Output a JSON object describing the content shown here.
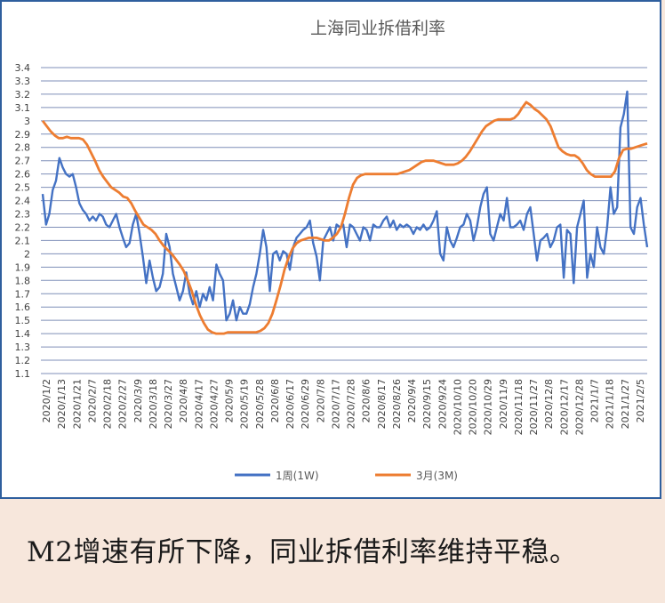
{
  "chart_data": {
    "type": "line",
    "title": "上海同业拆借利率",
    "ylim": [
      1.1,
      3.4
    ],
    "y_ticks": [
      "1.1",
      "1.2",
      "1.3",
      "1.4",
      "1.5",
      "1.6",
      "1.7",
      "1.8",
      "1.9",
      "2",
      "2.1",
      "2.2",
      "2.3",
      "2.4",
      "2.5",
      "2.6",
      "2.7",
      "2.8",
      "2.9",
      "3",
      "3.1",
      "3.2",
      "3.3",
      "3.4"
    ],
    "x_tick_labels": [
      "2020/1/2",
      "2020/1/13",
      "2020/1/21",
      "2020/2/7",
      "2020/2/18",
      "2020/2/27",
      "2020/3/9",
      "2020/3/18",
      "2020/3/27",
      "2020/4/8",
      "2020/4/17",
      "2020/4/27",
      "2020/5/9",
      "2020/5/19",
      "2020/5/28",
      "2020/6/8",
      "2020/6/17",
      "2020/6/29",
      "2020/7/8",
      "2020/7/17",
      "2020/7/28",
      "2020/8/6",
      "2020/8/17",
      "2020/8/26",
      "2020/9/4",
      "2020/9/15",
      "2020/9/24",
      "2020/10/10",
      "2020/10/20",
      "2020/10/29",
      "2020/11/9",
      "2020/11/18",
      "2020/11/27",
      "2020/12/8",
      "2020/12/17",
      "2020/12/28",
      "2021/1/7",
      "2021/1/18",
      "2021/1/27",
      "2021/2/5"
    ],
    "grid": true,
    "legend_position": "bottom",
    "series": [
      {
        "name": "1周(1W)",
        "color": "#4472c4",
        "values": [
          2.45,
          2.22,
          2.3,
          2.48,
          2.55,
          2.72,
          2.65,
          2.6,
          2.58,
          2.6,
          2.5,
          2.38,
          2.33,
          2.3,
          2.25,
          2.28,
          2.25,
          2.3,
          2.28,
          2.22,
          2.2,
          2.25,
          2.3,
          2.2,
          2.12,
          2.05,
          2.08,
          2.22,
          2.3,
          2.15,
          1.98,
          1.78,
          1.95,
          1.82,
          1.72,
          1.75,
          1.85,
          2.15,
          2.05,
          1.85,
          1.75,
          1.65,
          1.72,
          1.86,
          1.7,
          1.62,
          1.72,
          1.6,
          1.7,
          1.65,
          1.75,
          1.65,
          1.92,
          1.85,
          1.8,
          1.5,
          1.55,
          1.65,
          1.5,
          1.6,
          1.55,
          1.55,
          1.62,
          1.75,
          1.85,
          2.0,
          2.18,
          2.05,
          1.72,
          2.0,
          2.02,
          1.95,
          2.02,
          2.0,
          1.88,
          2.05,
          2.12,
          2.15,
          2.18,
          2.2,
          2.25,
          2.08,
          1.98,
          1.8,
          2.1,
          2.15,
          2.2,
          2.1,
          2.22,
          2.2,
          2.22,
          2.05,
          2.22,
          2.2,
          2.15,
          2.1,
          2.2,
          2.18,
          2.1,
          2.22,
          2.2,
          2.2,
          2.25,
          2.28,
          2.2,
          2.25,
          2.18,
          2.22,
          2.2,
          2.22,
          2.2,
          2.15,
          2.2,
          2.18,
          2.22,
          2.18,
          2.2,
          2.25,
          2.32,
          2.0,
          1.95,
          2.2,
          2.1,
          2.05,
          2.12,
          2.2,
          2.22,
          2.3,
          2.25,
          2.1,
          2.2,
          2.35,
          2.45,
          2.5,
          2.15,
          2.1,
          2.2,
          2.3,
          2.25,
          2.42,
          2.2,
          2.2,
          2.22,
          2.25,
          2.18,
          2.3,
          2.35,
          2.15,
          1.95,
          2.1,
          2.12,
          2.15,
          2.05,
          2.1,
          2.2,
          2.22,
          1.82,
          2.18,
          2.15,
          1.78,
          2.2,
          2.3,
          2.4,
          1.82,
          2.0,
          1.9,
          2.2,
          2.05,
          2.0,
          2.2,
          2.5,
          2.3,
          2.35,
          2.95,
          3.05,
          3.22,
          2.2,
          2.15,
          2.35,
          2.42,
          2.22,
          2.05
        ]
      },
      {
        "name": "3月(3M)",
        "color": "#ed7d31",
        "values": [
          3.0,
          2.96,
          2.92,
          2.89,
          2.87,
          2.87,
          2.88,
          2.87,
          2.87,
          2.87,
          2.86,
          2.82,
          2.76,
          2.7,
          2.63,
          2.58,
          2.54,
          2.5,
          2.48,
          2.46,
          2.43,
          2.42,
          2.38,
          2.32,
          2.27,
          2.22,
          2.2,
          2.18,
          2.15,
          2.1,
          2.06,
          2.03,
          2.0,
          1.96,
          1.92,
          1.87,
          1.8,
          1.72,
          1.62,
          1.54,
          1.48,
          1.43,
          1.41,
          1.4,
          1.4,
          1.4,
          1.41,
          1.41,
          1.41,
          1.41,
          1.41,
          1.41,
          1.41,
          1.41,
          1.42,
          1.44,
          1.48,
          1.55,
          1.65,
          1.76,
          1.88,
          1.97,
          2.04,
          2.08,
          2.1,
          2.11,
          2.12,
          2.12,
          2.12,
          2.11,
          2.1,
          2.1,
          2.12,
          2.15,
          2.2,
          2.3,
          2.42,
          2.52,
          2.57,
          2.59,
          2.6,
          2.6,
          2.6,
          2.6,
          2.6,
          2.6,
          2.6,
          2.6,
          2.6,
          2.61,
          2.62,
          2.63,
          2.65,
          2.67,
          2.69,
          2.7,
          2.7,
          2.7,
          2.69,
          2.68,
          2.67,
          2.67,
          2.67,
          2.68,
          2.7,
          2.73,
          2.77,
          2.82,
          2.87,
          2.92,
          2.96,
          2.98,
          3.0,
          3.01,
          3.01,
          3.01,
          3.01,
          3.02,
          3.05,
          3.1,
          3.14,
          3.12,
          3.09,
          3.07,
          3.04,
          3.01,
          2.96,
          2.88,
          2.8,
          2.77,
          2.75,
          2.74,
          2.74,
          2.72,
          2.68,
          2.63,
          2.6,
          2.58,
          2.58,
          2.58,
          2.58,
          2.58,
          2.62,
          2.72,
          2.78,
          2.79,
          2.79,
          2.8,
          2.81,
          2.82,
          2.83
        ]
      }
    ]
  },
  "caption": "M2增速有所下降，同业拆借利率维持平稳。"
}
